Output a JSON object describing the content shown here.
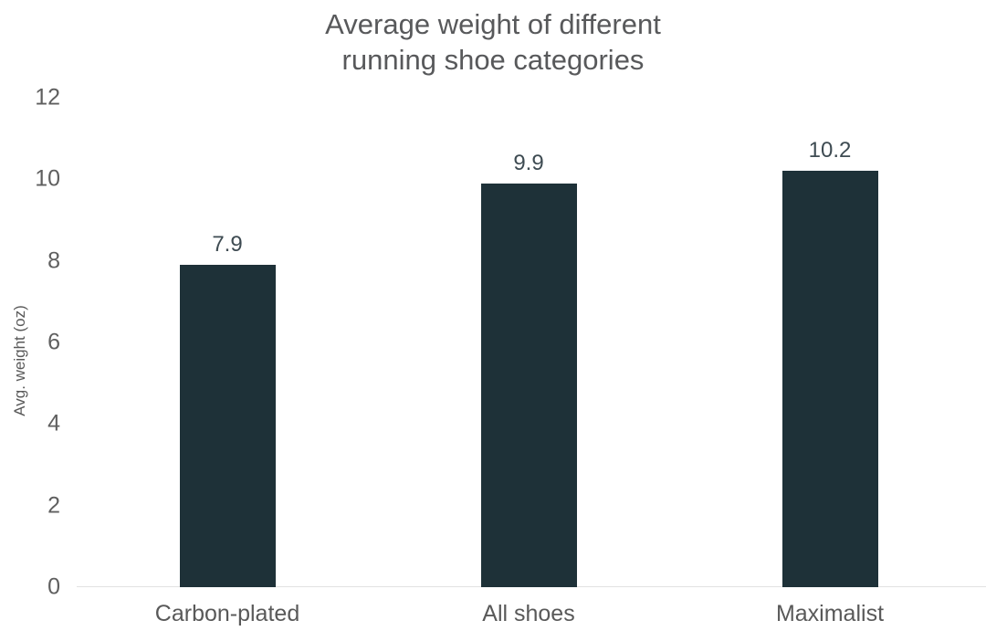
{
  "chart_data": {
    "type": "bar",
    "title": "Average weight of different\nrunning shoe categories",
    "categories": [
      "Carbon-plated",
      "All shoes",
      "Maximalist"
    ],
    "values": [
      7.9,
      9.9,
      10.2
    ],
    "value_labels": [
      "7.9",
      "9.9",
      "10.2"
    ],
    "xlabel": "",
    "ylabel": "Avg. weight (oz)",
    "ylim": [
      0,
      12
    ],
    "yticks": [
      0,
      2,
      4,
      6,
      8,
      10,
      12
    ],
    "grid": false,
    "legend": false,
    "colors": {
      "bar": "#1e3138",
      "title": "#58595b",
      "tick_label": "#5f5f5f",
      "category_label": "#595959",
      "value_label": "#3e4b52",
      "axis_line": "#e2e2e2",
      "background": "#ffffff"
    }
  }
}
